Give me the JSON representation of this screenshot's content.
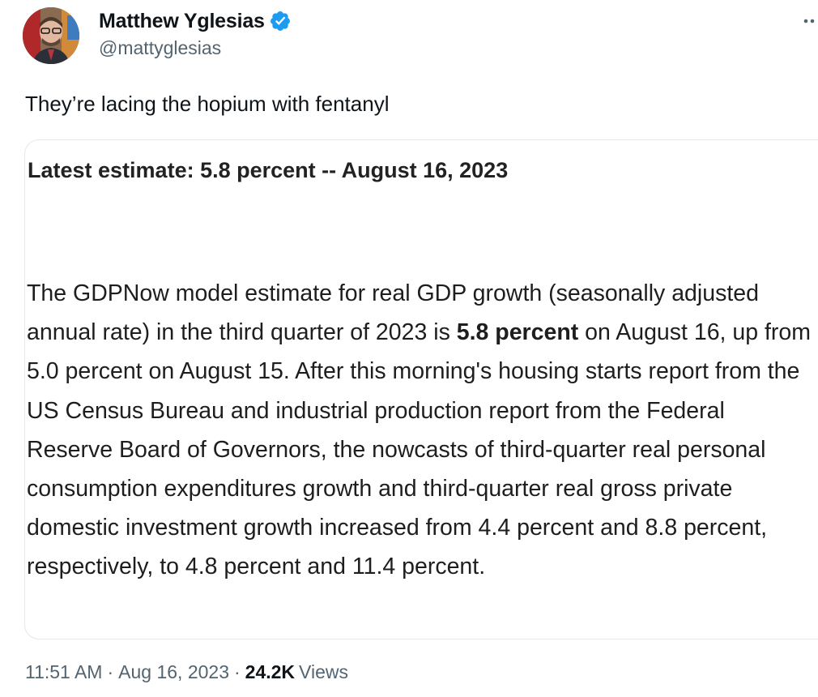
{
  "author": {
    "name": "Matthew Yglesias",
    "handle": "@mattyglesias",
    "verified": true,
    "verified_color": "#1d9bf0"
  },
  "tweet": {
    "text": "They’re lacing the hopium with fentanyl"
  },
  "media": {
    "headline": "Latest estimate: 5.8 percent -- August 16, 2023",
    "body_before": "The GDPNow model estimate for real GDP growth (seasonally adjusted annual rate) in the third quarter of 2023 is ",
    "body_bold": "5.8 percent",
    "body_after": " on August 16, up from 5.0 percent on August 15. After this morning's housing starts report from the US Census Bureau and industrial production report from the Federal Reserve Board of Governors, the nowcasts of third-quarter real personal consumption expenditures growth and third-quarter real gross private domestic investment growth increased from 4.4 percent and 8.8 percent, respectively, to 4.8 percent and 11.4 percent."
  },
  "meta": {
    "time": "11:51 AM",
    "separator": "·",
    "date": "Aug 16, 2023",
    "views_count": "24.2K",
    "views_label": "Views"
  },
  "icons": {
    "more": "more-horizontal-icon",
    "verified": "verified-badge-icon"
  }
}
